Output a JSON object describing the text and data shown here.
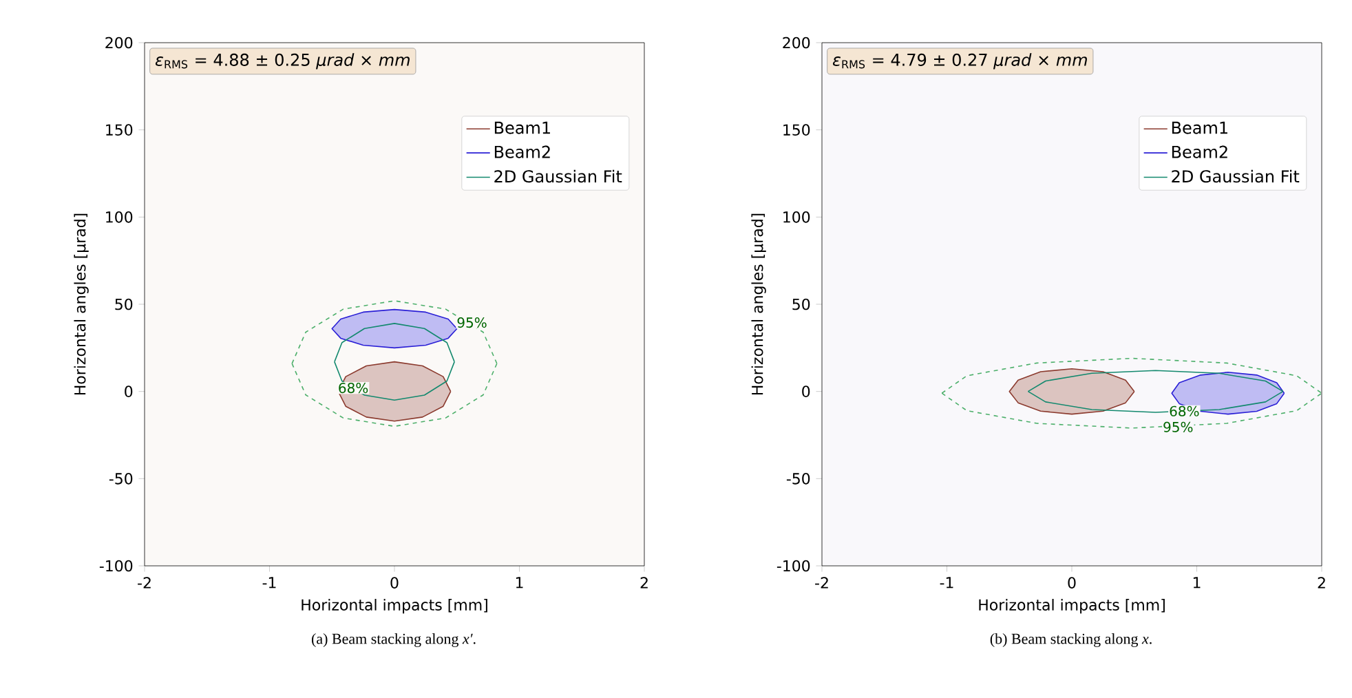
{
  "chart_data": [
    {
      "type": "line",
      "xlabel": "Horizontal impacts [mm]",
      "ylabel": "Horizontal angles [μrad]",
      "xlim": [
        -2,
        2
      ],
      "ylim": [
        -100,
        200
      ],
      "xticks": [
        -2,
        -1,
        0,
        1,
        2
      ],
      "yticks": [
        -100,
        -50,
        0,
        50,
        100,
        150,
        200
      ],
      "legend": "top right",
      "marker": "none",
      "series": [
        {
          "name": "Beam1",
          "type": "area",
          "color": "#8b3a2e",
          "x": [
            0.45,
            0.39,
            0.225,
            0,
            -0.225,
            -0.39,
            -0.45,
            -0.39,
            -0.225,
            0,
            0.225,
            0.39,
            0.45
          ],
          "values": [
            0,
            8.5,
            14.7,
            17,
            14.7,
            8.5,
            0,
            -8.5,
            -14.7,
            -17,
            -14.7,
            -8.5,
            0
          ]
        },
        {
          "name": "Beam2",
          "type": "area",
          "color": "#2a1fd6",
          "x": [
            0.5,
            0.43,
            0.25,
            0,
            -0.25,
            -0.43,
            -0.5,
            -0.43,
            -0.25,
            0,
            0.25,
            0.43,
            0.5
          ],
          "values": [
            36,
            41.5,
            45.5,
            47,
            45.5,
            41.5,
            36,
            30.5,
            26.5,
            25,
            26.5,
            30.5,
            36
          ]
        },
        {
          "name": "2D Gaussian Fit",
          "line_style": "solid",
          "color": "#13896e",
          "x": [
            -0.48,
            -0.42,
            -0.24,
            0,
            0.24,
            0.42,
            0.48
          ],
          "values": [
            17,
            28,
            36.1,
            39,
            36.1,
            28,
            17
          ]
        },
        {
          "line_style": "solid",
          "color": "#13896e",
          "x": [
            -0.48,
            -0.42,
            -0.24,
            0,
            0.24,
            0.42,
            0.48
          ],
          "values": [
            17,
            6,
            -2.1,
            -5,
            -2.1,
            6,
            17
          ]
        },
        {
          "line_style": "dashed",
          "color": "#4caf6a",
          "x": [
            -0.82,
            -0.71,
            -0.41,
            0,
            0.41,
            0.71,
            0.82
          ],
          "values": [
            16,
            34,
            47.2,
            52,
            47.2,
            34,
            16
          ]
        },
        {
          "line_style": "dashed",
          "color": "#4caf6a",
          "x": [
            -0.82,
            -0.71,
            -0.41,
            0,
            0.41,
            0.71,
            0.82
          ],
          "values": [
            16,
            -2,
            -15.2,
            -20,
            -15.2,
            -2,
            16
          ]
        }
      ],
      "annotations": [
        "*ε*$_{RMS}$ = 4.88 ± 0.25 *μrad* × *mm*",
        "(a) Beam stacking along *x′*.",
        {
          "text": "95%",
          "x": 0.62,
          "y": 39.5
        },
        {
          "text": "68%",
          "x": -0.33,
          "y": 2
        }
      ]
    },
    {
      "type": "line",
      "xlabel": "Horizontal impacts [mm]",
      "ylabel": "Horizontal angles [μrad]",
      "xlim": [
        -2,
        2
      ],
      "ylim": [
        -100,
        200
      ],
      "xticks": [
        -2,
        -1,
        0,
        1,
        2
      ],
      "yticks": [
        -100,
        -50,
        0,
        50,
        100,
        150,
        200
      ],
      "legend": "top right",
      "marker": "none",
      "series": [
        {
          "name": "Beam1",
          "type": "area",
          "color": "#8b3a2e",
          "x": [
            0.5,
            0.43,
            0.25,
            0,
            -0.25,
            -0.43,
            -0.5,
            -0.43,
            -0.25,
            0,
            0.25,
            0.43,
            0.5
          ],
          "values": [
            0,
            6.5,
            11.3,
            13,
            11.3,
            6.5,
            0,
            -6.5,
            -11.3,
            -13,
            -11.3,
            -6.5,
            0
          ]
        },
        {
          "name": "Beam2",
          "type": "area",
          "color": "#2a1fd6",
          "x": [
            1.7,
            1.64,
            1.48,
            1.25,
            1.03,
            0.86,
            0.8,
            0.86,
            1.03,
            1.25,
            1.48,
            1.64,
            1.7
          ],
          "values": [
            -1,
            5,
            9.4,
            11,
            9.4,
            5,
            -1,
            -7,
            -11.4,
            -13,
            -11.4,
            -7,
            -1
          ]
        },
        {
          "name": "2D Gaussian Fit",
          "line_style": "solid",
          "color": "#13896e",
          "x": [
            -0.35,
            -0.21,
            0.16,
            0.67,
            1.18,
            1.55,
            1.69
          ],
          "values": [
            0,
            6,
            10.4,
            12,
            10.4,
            6,
            0
          ]
        },
        {
          "line_style": "solid",
          "color": "#13896e",
          "x": [
            -0.35,
            -0.21,
            0.16,
            0.67,
            1.18,
            1.55,
            1.69
          ],
          "values": [
            0,
            -6,
            -10.4,
            -12,
            -10.4,
            -6,
            0
          ]
        },
        {
          "line_style": "dashed",
          "color": "#4caf6a",
          "x": [
            -1.04,
            -0.84,
            -0.28,
            0.48,
            1.24,
            1.8,
            2
          ],
          "values": [
            -1,
            9,
            16.3,
            19,
            16.3,
            9,
            -1
          ]
        },
        {
          "line_style": "dashed",
          "color": "#4caf6a",
          "x": [
            -1.04,
            -0.84,
            -0.28,
            0.48,
            1.24,
            1.8,
            2
          ],
          "values": [
            -1,
            -11,
            -18.3,
            -21,
            -18.3,
            -11,
            -1
          ]
        }
      ],
      "annotations": [
        "*ε*$_{RMS}$ = 4.79 ± 0.27 *μrad* × *mm*",
        "(b) Beam stacking along *x*.",
        {
          "text": "95%",
          "x": 0.85,
          "y": -20.4
        },
        {
          "text": "68%",
          "x": 0.9,
          "y": -11.3
        }
      ]
    }
  ]
}
